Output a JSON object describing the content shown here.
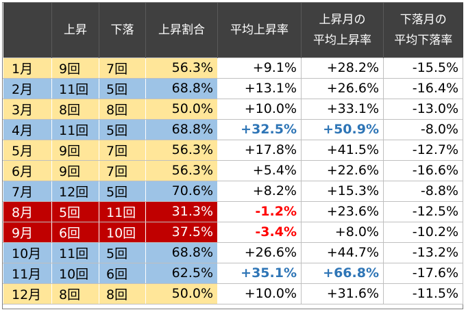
{
  "headers": [
    "",
    "上昇",
    "下落",
    "上昇割合",
    "平均上昇率",
    "上昇月の\n平均上昇率",
    "下落月の\n平均下落率"
  ],
  "header_lines": {
    "h5_line1": "上昇月の",
    "h5_line2": "平均上昇率",
    "h6_line1": "下落月の",
    "h6_line2": "平均下落率"
  },
  "colors": {
    "header": "#404040",
    "yellow": "#ffe699",
    "blue": "#9dc3e6",
    "red": "#c00000",
    "highlight_blue": "#2e75b6",
    "highlight_red": "#ff0000"
  },
  "rows": [
    {
      "month": "1月",
      "up": "9回",
      "down": "7回",
      "ratio": "56.3%",
      "avg": "+9.1%",
      "avg_up": "+28.2%",
      "avg_down": "-15.5%",
      "color": "yellow"
    },
    {
      "month": "2月",
      "up": "11回",
      "down": "5回",
      "ratio": "68.8%",
      "avg": "+13.1%",
      "avg_up": "+26.6%",
      "avg_down": "-16.4%",
      "color": "blue"
    },
    {
      "month": "3月",
      "up": "8回",
      "down": "8回",
      "ratio": "50.0%",
      "avg": "+10.0%",
      "avg_up": "+33.1%",
      "avg_down": "-13.0%",
      "color": "yellow"
    },
    {
      "month": "4月",
      "up": "11回",
      "down": "5回",
      "ratio": "68.8%",
      "avg": "+32.5%",
      "avg_up": "+50.9%",
      "avg_down": "-8.0%",
      "color": "blue",
      "hi_avg": "blue",
      "hi_avg_up": "blue"
    },
    {
      "month": "5月",
      "up": "9回",
      "down": "7回",
      "ratio": "56.3%",
      "avg": "+17.8%",
      "avg_up": "+41.5%",
      "avg_down": "-12.7%",
      "color": "yellow"
    },
    {
      "month": "6月",
      "up": "9回",
      "down": "7回",
      "ratio": "56.3%",
      "avg": "+5.4%",
      "avg_up": "+22.6%",
      "avg_down": "-16.6%",
      "color": "yellow"
    },
    {
      "month": "7月",
      "up": "12回",
      "down": "5回",
      "ratio": "70.6%",
      "avg": "+8.2%",
      "avg_up": "+15.3%",
      "avg_down": "-8.8%",
      "color": "blue"
    },
    {
      "month": "8月",
      "up": "5回",
      "down": "11回",
      "ratio": "31.3%",
      "avg": "-1.2%",
      "avg_up": "+23.6%",
      "avg_down": "-12.5%",
      "color": "red",
      "hi_avg": "red"
    },
    {
      "month": "9月",
      "up": "6回",
      "down": "10回",
      "ratio": "37.5%",
      "avg": "-3.4%",
      "avg_up": "+8.0%",
      "avg_down": "-10.2%",
      "color": "red",
      "hi_avg": "red"
    },
    {
      "month": "10月",
      "up": "11回",
      "down": "5回",
      "ratio": "68.8%",
      "avg": "+26.6%",
      "avg_up": "+44.7%",
      "avg_down": "-13.2%",
      "color": "blue"
    },
    {
      "month": "11月",
      "up": "10回",
      "down": "6回",
      "ratio": "62.5%",
      "avg": "+35.1%",
      "avg_up": "+66.8%",
      "avg_down": "-17.6%",
      "color": "blue",
      "hi_avg": "blue",
      "hi_avg_up": "blue"
    },
    {
      "month": "12月",
      "up": "8回",
      "down": "8回",
      "ratio": "50.0%",
      "avg": "+10.0%",
      "avg_up": "+31.6%",
      "avg_down": "-11.5%",
      "color": "yellow"
    }
  ]
}
